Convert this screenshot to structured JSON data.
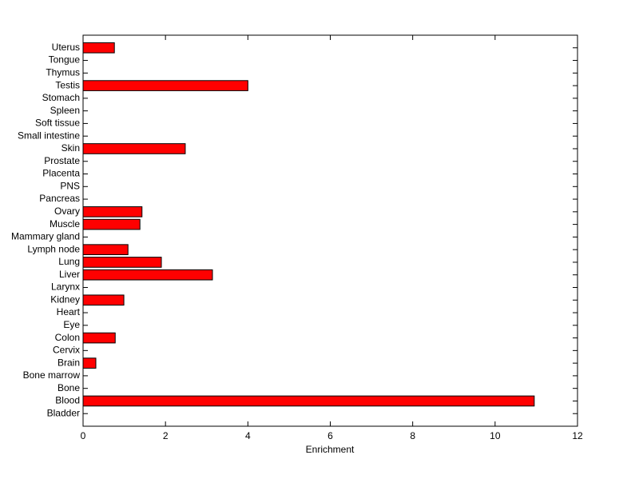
{
  "chart_data": {
    "type": "barh",
    "xlabel": "Enrichment",
    "categories": [
      "Bladder",
      "Blood",
      "Bone",
      "Bone marrow",
      "Brain",
      "Cervix",
      "Colon",
      "Eye",
      "Heart",
      "Kidney",
      "Larynx",
      "Liver",
      "Lung",
      "Lymph node",
      "Mammary gland",
      "Muscle",
      "Ovary",
      "Pancreas",
      "PNS",
      "Placenta",
      "Prostate",
      "Skin",
      "Small intestine",
      "Soft tissue",
      "Spleen",
      "Stomach",
      "Testis",
      "Thymus",
      "Tongue",
      "Uterus"
    ],
    "values": [
      0,
      10.95,
      0,
      0,
      0.31,
      0,
      0.78,
      0,
      0,
      0.99,
      0,
      3.14,
      1.9,
      1.09,
      0,
      1.38,
      1.43,
      0,
      0,
      0,
      0,
      2.48,
      0,
      0,
      0,
      0,
      4.0,
      0,
      0,
      0.76
    ],
    "color": "#ff0000",
    "xlim": [
      0,
      12
    ],
    "xticks": [
      0,
      2,
      4,
      6,
      8,
      10,
      12
    ],
    "grid": false
  }
}
